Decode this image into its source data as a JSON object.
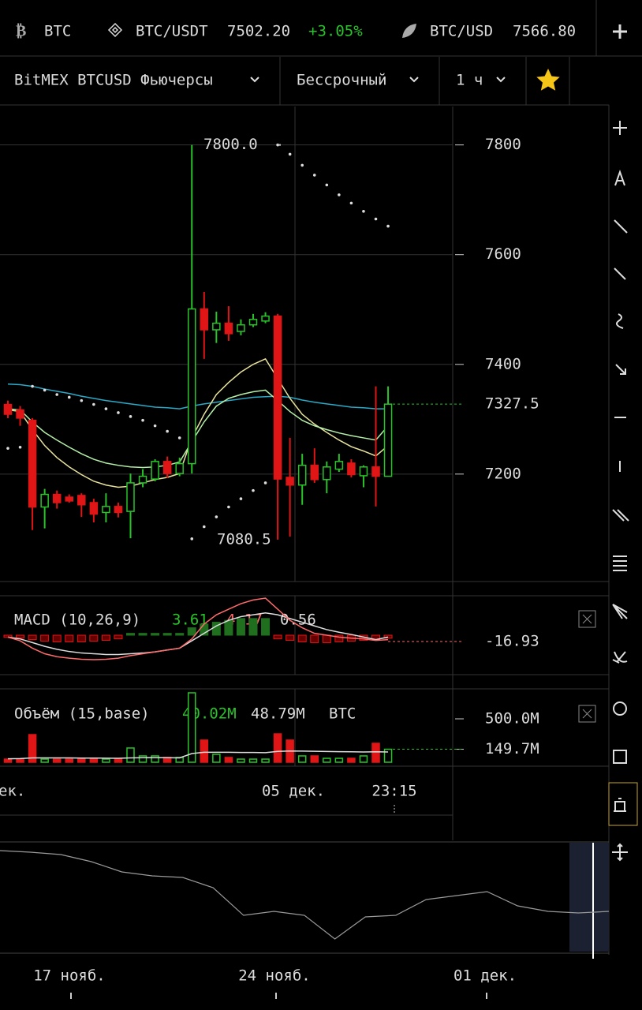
{
  "ticker_bar": {
    "items": [
      {
        "symbol": "BTC"
      },
      {
        "symbol": "BTC/USDT",
        "price": "7502.20",
        "change": "+3.05%"
      },
      {
        "symbol": "BTC/USD",
        "price": "7566.80"
      }
    ]
  },
  "toolbar": {
    "exchange": "BitMEX BTCUSD Фьючерсы",
    "contract": "Бессрочный",
    "interval": "1 ч"
  },
  "chart_data": {
    "type": "candlestick",
    "up_color": "#29c329",
    "down_color": "#e01515",
    "ylim": [
      7007,
      7870
    ],
    "yticks": [
      7200,
      7400,
      7600,
      7800
    ],
    "grid": true,
    "last_price": 7327.5,
    "high_label": {
      "value": 7800,
      "label": "7800.0"
    },
    "low_label": 7080.5,
    "candles": [
      {
        "open": 7327,
        "high": 7334,
        "low": 7302,
        "close": 7309
      },
      {
        "open": 7317,
        "high": 7324,
        "low": 7288,
        "close": 7302
      },
      {
        "open": 7298,
        "high": 7302,
        "low": 7098,
        "close": 7140
      },
      {
        "open": 7140,
        "high": 7173,
        "low": 7101,
        "close": 7163
      },
      {
        "open": 7163,
        "high": 7170,
        "low": 7137,
        "close": 7148
      },
      {
        "open": 7158,
        "high": 7163,
        "low": 7148,
        "close": 7151
      },
      {
        "open": 7161,
        "high": 7165,
        "low": 7122,
        "close": 7144
      },
      {
        "open": 7148,
        "high": 7155,
        "low": 7112,
        "close": 7127
      },
      {
        "open": 7130,
        "high": 7165,
        "low": 7112,
        "close": 7141
      },
      {
        "open": 7141,
        "high": 7148,
        "low": 7121,
        "close": 7130
      },
      {
        "open": 7132,
        "high": 7201,
        "low": 7083,
        "close": 7184
      },
      {
        "open": 7184,
        "high": 7209,
        "low": 7176,
        "close": 7196
      },
      {
        "open": 7191,
        "high": 7227,
        "low": 7187,
        "close": 7223
      },
      {
        "open": 7223,
        "high": 7232,
        "low": 7193,
        "close": 7201
      },
      {
        "open": 7201,
        "high": 7230,
        "low": 7196,
        "close": 7219
      },
      {
        "open": 7219,
        "high": 7800,
        "low": 7201,
        "close": 7501
      },
      {
        "open": 7501,
        "high": 7532,
        "low": 7410,
        "close": 7463
      },
      {
        "open": 7463,
        "high": 7496,
        "low": 7439,
        "close": 7475
      },
      {
        "open": 7475,
        "high": 7506,
        "low": 7443,
        "close": 7456
      },
      {
        "open": 7460,
        "high": 7482,
        "low": 7453,
        "close": 7472
      },
      {
        "open": 7472,
        "high": 7492,
        "low": 7468,
        "close": 7482
      },
      {
        "open": 7479,
        "high": 7495,
        "low": 7475,
        "close": 7488
      },
      {
        "open": 7488,
        "high": 7492,
        "low": 7080.5,
        "close": 7191
      },
      {
        "open": 7194,
        "high": 7266,
        "low": 7086,
        "close": 7180
      },
      {
        "open": 7180,
        "high": 7237,
        "low": 7144,
        "close": 7216
      },
      {
        "open": 7216,
        "high": 7247,
        "low": 7184,
        "close": 7190
      },
      {
        "open": 7190,
        "high": 7223,
        "low": 7165,
        "close": 7213
      },
      {
        "open": 7209,
        "high": 7237,
        "low": 7204,
        "close": 7223
      },
      {
        "open": 7220,
        "high": 7227,
        "low": 7194,
        "close": 7199
      },
      {
        "open": 7197,
        "high": 7216,
        "low": 7176,
        "close": 7213
      },
      {
        "open": 7213,
        "high": 7360,
        "low": 7141,
        "close": 7196
      },
      {
        "open": 7196,
        "high": 7360,
        "low": 7199,
        "close": 7327.5
      }
    ],
    "series": [
      {
        "color": "#2aa9c8",
        "values": [
          7364,
          7363,
          7360,
          7355,
          7351,
          7347,
          7342,
          7338,
          7334,
          7331,
          7328,
          7325,
          7322,
          7321,
          7319,
          7324,
          7328,
          7331,
          7334,
          7337,
          7340,
          7341,
          7342,
          7340,
          7335,
          7331,
          7328,
          7325,
          7322,
          7321,
          7319,
          7319
        ]
      },
      {
        "color": "#e8e39c",
        "values": [
          7317,
          7314,
          7281,
          7252,
          7230,
          7213,
          7199,
          7187,
          7180,
          7176,
          7178,
          7184,
          7190,
          7194,
          7201,
          7266,
          7309,
          7345,
          7367,
          7386,
          7400,
          7410,
          7374,
          7338,
          7309,
          7291,
          7276,
          7262,
          7250,
          7242,
          7233,
          7252
        ]
      },
      {
        "color": "#b5f0a8",
        "values": [
          7319,
          7317,
          7295,
          7276,
          7262,
          7249,
          7237,
          7227,
          7220,
          7216,
          7213,
          7212,
          7213,
          7216,
          7222,
          7259,
          7295,
          7324,
          7338,
          7345,
          7350,
          7353,
          7334,
          7314,
          7298,
          7288,
          7281,
          7275,
          7270,
          7266,
          7262,
          7288
        ]
      }
    ],
    "sar": {
      "color": "#dddddd",
      "values": [
        7247,
        7249,
        7360,
        7353,
        7345,
        7340,
        7334,
        7327,
        7319,
        7312,
        7305,
        7298,
        7288,
        7278,
        7266,
        7082,
        7104,
        7122,
        7140,
        7155,
        7170,
        7184,
        7800,
        7783,
        7763,
        7745,
        7727,
        7709,
        7694,
        7679,
        7665,
        7652
      ]
    },
    "macd": {
      "name": "MACD (10,26,9)",
      "legend_values": [
        3.61,
        4.17,
        0.56
      ],
      "last_value": -16.93,
      "ylim": [
        -100,
        100
      ],
      "histogram": [
        -6,
        -8,
        -12,
        -16,
        -18,
        -18,
        -18,
        -16,
        -14,
        -10,
        5,
        5,
        5,
        5,
        5,
        20,
        30,
        35,
        40,
        45,
        45,
        45,
        -10,
        -14,
        -18,
        -20,
        -20,
        -18,
        -16,
        -14,
        -12,
        -8
      ],
      "macd_line": {
        "color": "#dddddd",
        "values": [
          -5,
          -10,
          -20,
          -30,
          -38,
          -44,
          -48,
          -50,
          -52,
          -52,
          -50,
          -48,
          -45,
          -40,
          -35,
          -15,
          5,
          25,
          40,
          50,
          55,
          60,
          55,
          45,
          35,
          25,
          15,
          8,
          2,
          -5,
          -12,
          -5
        ]
      },
      "signal_line": {
        "color": "#ff6b6b",
        "values": [
          -5,
          -15,
          -35,
          -50,
          -58,
          -62,
          -65,
          -66,
          -65,
          -62,
          -55,
          -50,
          -45,
          -40,
          -35,
          -10,
          30,
          55,
          70,
          85,
          95,
          100,
          70,
          40,
          20,
          5,
          0,
          -5,
          -8,
          -10,
          -14,
          -12
        ]
      }
    },
    "volume": {
      "name": "Объём (15,base)",
      "legend_values": [
        "40.02M",
        "48.79M"
      ],
      "unit": "BTC",
      "ylim": [
        0,
        800
      ],
      "yticks": [
        {
          "value": 500,
          "label": "500.0M"
        },
        {
          "value": 149.7,
          "label": "149.7M"
        }
      ],
      "values": [
        36,
        36,
        318,
        36,
        36,
        36,
        36,
        36,
        36,
        36,
        164,
        73,
        73,
        55,
        55,
        800,
        255,
        91,
        55,
        36,
        36,
        36,
        327,
        255,
        73,
        73,
        45,
        45,
        45,
        73,
        218,
        149.7
      ],
      "ma": {
        "color": "#dddddd",
        "values": [
          40,
          42,
          50,
          50,
          50,
          50,
          48,
          48,
          47,
          46,
          50,
          52,
          52,
          52,
          50,
          100,
          115,
          115,
          115,
          112,
          112,
          110,
          125,
          130,
          128,
          126,
          124,
          122,
          120,
          118,
          120,
          118
        ]
      }
    },
    "x_labels": [
      "ек.",
      "05 дек.",
      "23:15"
    ],
    "navigator": {
      "color": "#9a9a9a",
      "ylim": [
        6500,
        9000
      ],
      "values": [
        8846,
        8808,
        8750,
        8577,
        8327,
        8231,
        8192,
        7942,
        7269,
        7365,
        7269,
        6692,
        7231,
        7269,
        7654,
        7750,
        7846,
        7500,
        7365,
        7327,
        7365
      ],
      "labels": [
        "17 нояб.",
        "24 нояб.",
        "01 дек."
      ]
    }
  }
}
